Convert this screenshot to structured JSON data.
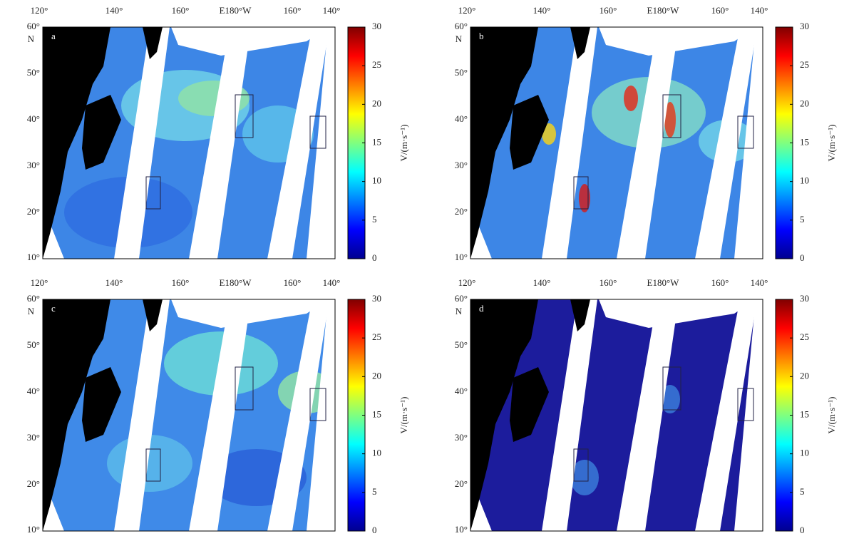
{
  "figure": {
    "lon_labels": [
      "120°",
      "140°",
      "160°",
      "E180°W",
      "160°",
      "140°"
    ],
    "lat_labels": [
      "60°",
      "50°",
      "40°",
      "30°",
      "20°",
      "10°"
    ],
    "lat_hemisphere": "N",
    "colorbar": {
      "ticks": [
        "30",
        "25",
        "20",
        "15",
        "10",
        "5",
        "0"
      ],
      "label": "V/(m·s⁻¹)"
    },
    "panels": [
      {
        "letter": "a"
      },
      {
        "letter": "b"
      },
      {
        "letter": "c"
      },
      {
        "letter": "d"
      }
    ]
  }
}
